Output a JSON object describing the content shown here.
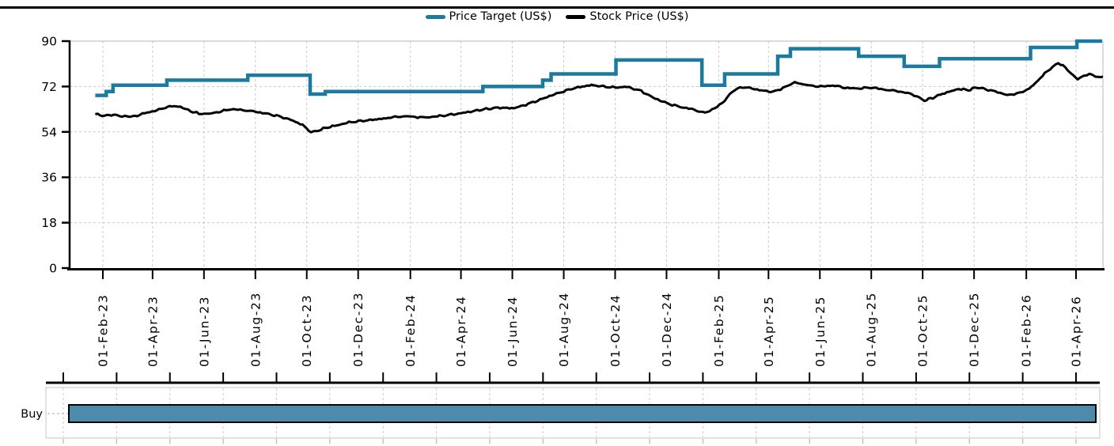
{
  "page": {
    "background": "#ffffff",
    "top_border_color": "#000000"
  },
  "legend": {
    "items": [
      {
        "label": "Price Target (US$)",
        "color": "#1c7a9e"
      },
      {
        "label": "Stock Price (US$)",
        "color": "#000000"
      }
    ]
  },
  "chart_data": {
    "type": "line",
    "title": "",
    "grid": "dashed",
    "grid_color": "#c9c9c9",
    "frame_color": "#c4c4c4",
    "y_axis": {
      "ticks": [
        0,
        18,
        36,
        54,
        72,
        90
      ],
      "range": [
        0,
        90
      ]
    },
    "x_axis": {
      "tick_labels": [
        "01-Feb-23",
        "01-Apr-23",
        "01-Jun-23",
        "01-Aug-23",
        "01-Oct-23",
        "01-Dec-23",
        "01-Feb-24",
        "01-Apr-24",
        "01-Jun-24",
        "01-Aug-24",
        "01-Oct-24",
        "01-Dec-24",
        "01-Feb-25",
        "01-Apr-25",
        "01-Jun-25",
        "01-Aug-25",
        "01-Oct-25",
        "01-Dec-25",
        "01-Feb-26",
        "01-Apr-26"
      ],
      "data_start": "2023-01-23",
      "data_end": "2026-05-03"
    },
    "series": [
      {
        "name": "Price Target (US$)",
        "style": "step",
        "color": "#1c7a9e",
        "points": [
          [
            "2023-01-23",
            68.5
          ],
          [
            "2023-02-05",
            70
          ],
          [
            "2023-02-13",
            72.5
          ],
          [
            "2023-04-18",
            74.5
          ],
          [
            "2023-07-23",
            76.5
          ],
          [
            "2023-10-05",
            69
          ],
          [
            "2023-10-23",
            70
          ],
          [
            "2024-04-27",
            72
          ],
          [
            "2024-07-07",
            74.5
          ],
          [
            "2024-07-17",
            77
          ],
          [
            "2024-10-02",
            82.5
          ],
          [
            "2025-01-12",
            72.5
          ],
          [
            "2025-02-08",
            77
          ],
          [
            "2025-04-12",
            84
          ],
          [
            "2025-04-27",
            87
          ],
          [
            "2025-07-17",
            84
          ],
          [
            "2025-09-09",
            80
          ],
          [
            "2025-10-21",
            83
          ],
          [
            "2026-02-06",
            87.5
          ],
          [
            "2026-04-02",
            90
          ]
        ]
      },
      {
        "name": "Stock Price (US$)",
        "style": "line",
        "color": "#000000",
        "points": [
          [
            "2023-01-23",
            61.0
          ],
          [
            "2023-02-03",
            60.4
          ],
          [
            "2023-02-14",
            60.8
          ],
          [
            "2023-02-24",
            60.2
          ],
          [
            "2023-03-08",
            60.0
          ],
          [
            "2023-03-20",
            61.2
          ],
          [
            "2023-04-03",
            62.3
          ],
          [
            "2023-04-14",
            63.4
          ],
          [
            "2023-04-24",
            64.3
          ],
          [
            "2023-05-04",
            63.9
          ],
          [
            "2023-05-16",
            62.2
          ],
          [
            "2023-05-26",
            61.3
          ],
          [
            "2023-06-07",
            61.1
          ],
          [
            "2023-06-19",
            62.0
          ],
          [
            "2023-07-03",
            63.0
          ],
          [
            "2023-07-17",
            62.7
          ],
          [
            "2023-08-01",
            62.0
          ],
          [
            "2023-08-15",
            61.2
          ],
          [
            "2023-08-29",
            60.2
          ],
          [
            "2023-09-12",
            58.8
          ],
          [
            "2023-09-26",
            56.8
          ],
          [
            "2023-10-06",
            53.8
          ],
          [
            "2023-10-13",
            54.3
          ],
          [
            "2023-10-23",
            55.6
          ],
          [
            "2023-11-06",
            56.6
          ],
          [
            "2023-11-20",
            57.8
          ],
          [
            "2023-12-04",
            58.3
          ],
          [
            "2023-12-18",
            58.8
          ],
          [
            "2024-01-03",
            59.4
          ],
          [
            "2024-01-17",
            60.1
          ],
          [
            "2024-02-01",
            60.1
          ],
          [
            "2024-02-15",
            59.7
          ],
          [
            "2024-03-01",
            60.1
          ],
          [
            "2024-03-15",
            60.6
          ],
          [
            "2024-04-01",
            61.4
          ],
          [
            "2024-04-15",
            62.2
          ],
          [
            "2024-05-01",
            63.1
          ],
          [
            "2024-05-15",
            63.6
          ],
          [
            "2024-06-03",
            63.4
          ],
          [
            "2024-06-17",
            64.8
          ],
          [
            "2024-07-01",
            66.4
          ],
          [
            "2024-07-15",
            68.2
          ],
          [
            "2024-08-01",
            70.1
          ],
          [
            "2024-08-15",
            71.5
          ],
          [
            "2024-09-03",
            72.6
          ],
          [
            "2024-09-17",
            72.0
          ],
          [
            "2024-10-01",
            71.6
          ],
          [
            "2024-10-15",
            71.9
          ],
          [
            "2024-11-01",
            70.2
          ],
          [
            "2024-11-15",
            67.6
          ],
          [
            "2024-12-02",
            65.3
          ],
          [
            "2024-12-16",
            64.0
          ],
          [
            "2025-01-02",
            62.9
          ],
          [
            "2025-01-13",
            61.6
          ],
          [
            "2025-01-24",
            62.6
          ],
          [
            "2025-02-05",
            65.5
          ],
          [
            "2025-02-17",
            69.8
          ],
          [
            "2025-02-26",
            71.8
          ],
          [
            "2025-03-10",
            71.4
          ],
          [
            "2025-03-24",
            70.4
          ],
          [
            "2025-04-07",
            69.9
          ],
          [
            "2025-04-21",
            71.8
          ],
          [
            "2025-05-02",
            73.7
          ],
          [
            "2025-05-15",
            72.6
          ],
          [
            "2025-06-02",
            72.0
          ],
          [
            "2025-06-16",
            72.4
          ],
          [
            "2025-07-01",
            71.5
          ],
          [
            "2025-07-15",
            71.2
          ],
          [
            "2025-08-01",
            71.6
          ],
          [
            "2025-08-18",
            70.7
          ],
          [
            "2025-09-02",
            70.1
          ],
          [
            "2025-09-16",
            69.2
          ],
          [
            "2025-09-29",
            67.3
          ],
          [
            "2025-10-03",
            66.4
          ],
          [
            "2025-10-13",
            67.6
          ],
          [
            "2025-10-22",
            68.8
          ],
          [
            "2025-11-04",
            70.2
          ],
          [
            "2025-11-13",
            71.1
          ],
          [
            "2025-11-24",
            70.5
          ],
          [
            "2025-12-04",
            71.7
          ],
          [
            "2025-12-15",
            70.9
          ],
          [
            "2025-12-29",
            69.8
          ],
          [
            "2026-01-09",
            68.6
          ],
          [
            "2026-01-20",
            69.1
          ],
          [
            "2026-02-02",
            70.6
          ],
          [
            "2026-02-12",
            73.4
          ],
          [
            "2026-02-23",
            77.2
          ],
          [
            "2026-03-04",
            79.8
          ],
          [
            "2026-03-11",
            81.4
          ],
          [
            "2026-03-19",
            79.6
          ],
          [
            "2026-03-26",
            77.2
          ],
          [
            "2026-04-03",
            74.9
          ],
          [
            "2026-04-10",
            76.1
          ],
          [
            "2026-04-17",
            77.0
          ],
          [
            "2026-04-24",
            76.1
          ],
          [
            "2026-05-01",
            75.6
          ],
          [
            "2026-05-03",
            76.0
          ]
        ]
      }
    ],
    "rating_band": {
      "label": "Buy",
      "fill": "#4d8baa",
      "border": "#000000",
      "start": "2023-01-23",
      "end": "2026-05-03"
    }
  }
}
